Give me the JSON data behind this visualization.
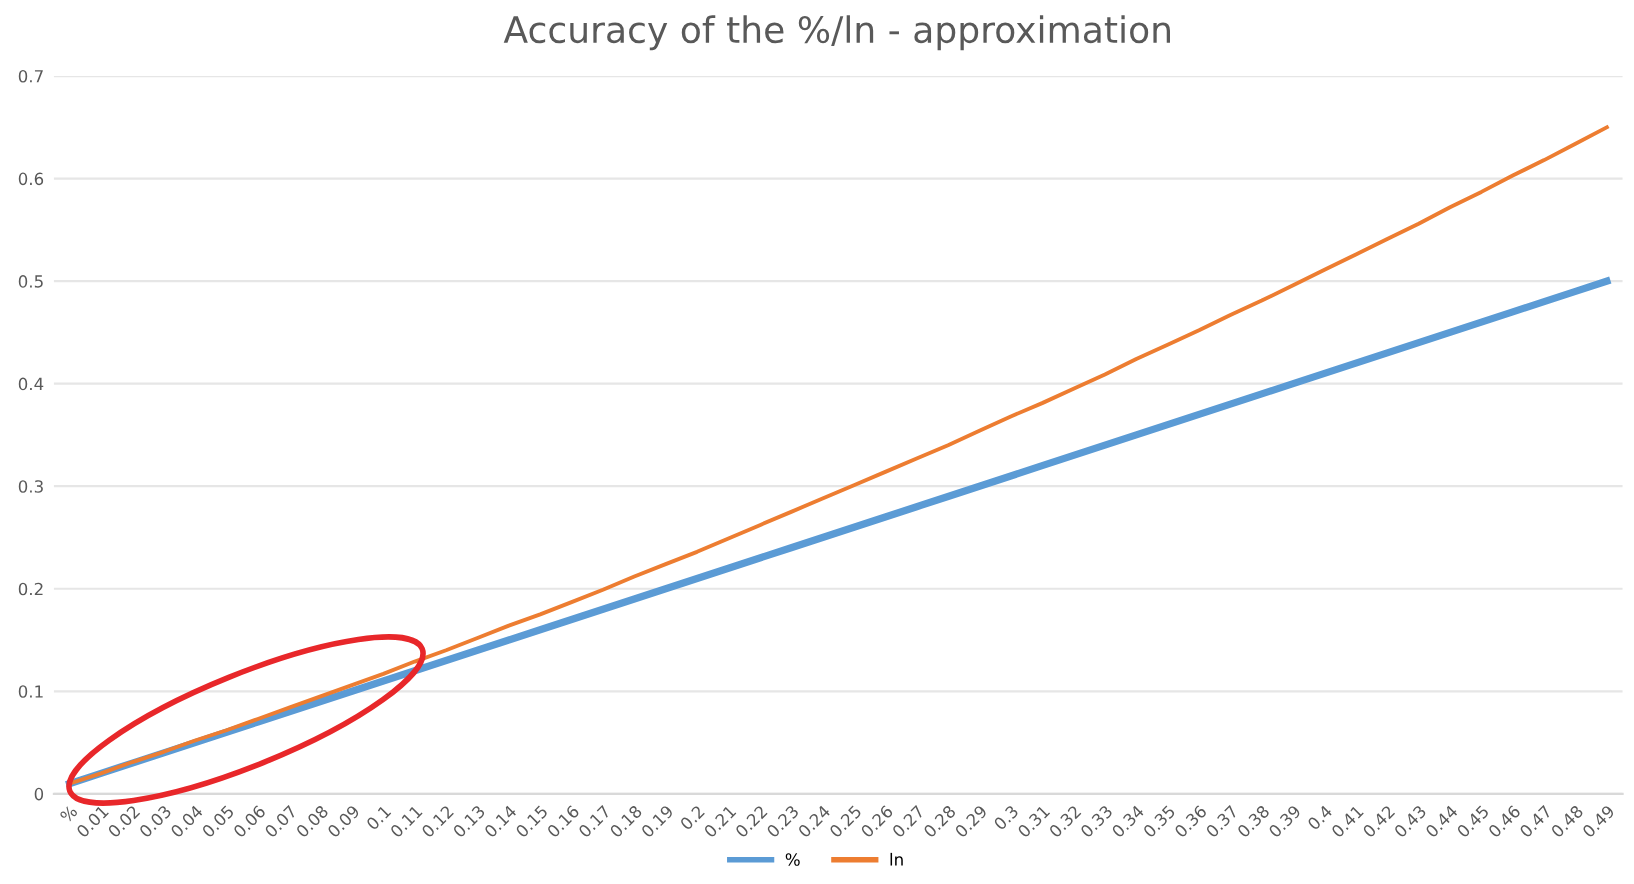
{
  "chart_data": {
    "type": "line",
    "title": "Accuracy of the %/ln - approximation",
    "categories": [
      "%",
      "0.01",
      "0.02",
      "0.03",
      "0.04",
      "0.05",
      "0.06",
      "0.07",
      "0.08",
      "0.09",
      "0.1",
      "0.11",
      "0.12",
      "0.13",
      "0.14",
      "0.15",
      "0.16",
      "0.17",
      "0.18",
      "0.19",
      "0.2",
      "0.21",
      "0.22",
      "0.23",
      "0.24",
      "0.25",
      "0.26",
      "0.27",
      "0.28",
      "0.29",
      "0.3",
      "0.31",
      "0.32",
      "0.33",
      "0.34",
      "0.35",
      "0.36",
      "0.37",
      "0.38",
      "0.39",
      "0.4",
      "0.41",
      "0.42",
      "0.43",
      "0.44",
      "0.45",
      "0.46",
      "0.47",
      "0.48",
      "0.49"
    ],
    "series": [
      {
        "name": "%",
        "color": "#5b9bd5",
        "values": [
          0.01,
          0.02,
          0.03,
          0.04,
          0.05,
          0.06,
          0.07,
          0.08,
          0.09,
          0.1,
          0.11,
          0.12,
          0.13,
          0.14,
          0.15,
          0.16,
          0.17,
          0.18,
          0.19,
          0.2,
          0.21,
          0.22,
          0.23,
          0.24,
          0.25,
          0.26,
          0.27,
          0.28,
          0.29,
          0.3,
          0.31,
          0.32,
          0.33,
          0.34,
          0.35,
          0.36,
          0.37,
          0.38,
          0.39,
          0.4,
          0.41,
          0.42,
          0.43,
          0.44,
          0.45,
          0.46,
          0.47,
          0.48,
          0.49,
          0.5
        ]
      },
      {
        "name": "ln",
        "color": "#ed7d31",
        "values": [
          0.01,
          0.02,
          0.031,
          0.041,
          0.052,
          0.062,
          0.073,
          0.084,
          0.095,
          0.106,
          0.117,
          0.129,
          0.14,
          0.152,
          0.164,
          0.175,
          0.187,
          0.199,
          0.212,
          0.224,
          0.236,
          0.249,
          0.262,
          0.275,
          0.288,
          0.301,
          0.314,
          0.327,
          0.34,
          0.354,
          0.368,
          0.381,
          0.395,
          0.409,
          0.424,
          0.438,
          0.452,
          0.467,
          0.481,
          0.496,
          0.511,
          0.526,
          0.541,
          0.556,
          0.572,
          0.587,
          0.603,
          0.618,
          0.634,
          0.65
        ]
      }
    ],
    "ylim": [
      0,
      0.7
    ],
    "yticks": [
      0,
      0.1,
      0.2,
      0.3,
      0.4,
      0.5,
      0.6,
      0.7
    ],
    "grid": "y",
    "legend": "bottom",
    "marker": "none",
    "line_style": "solid"
  }
}
